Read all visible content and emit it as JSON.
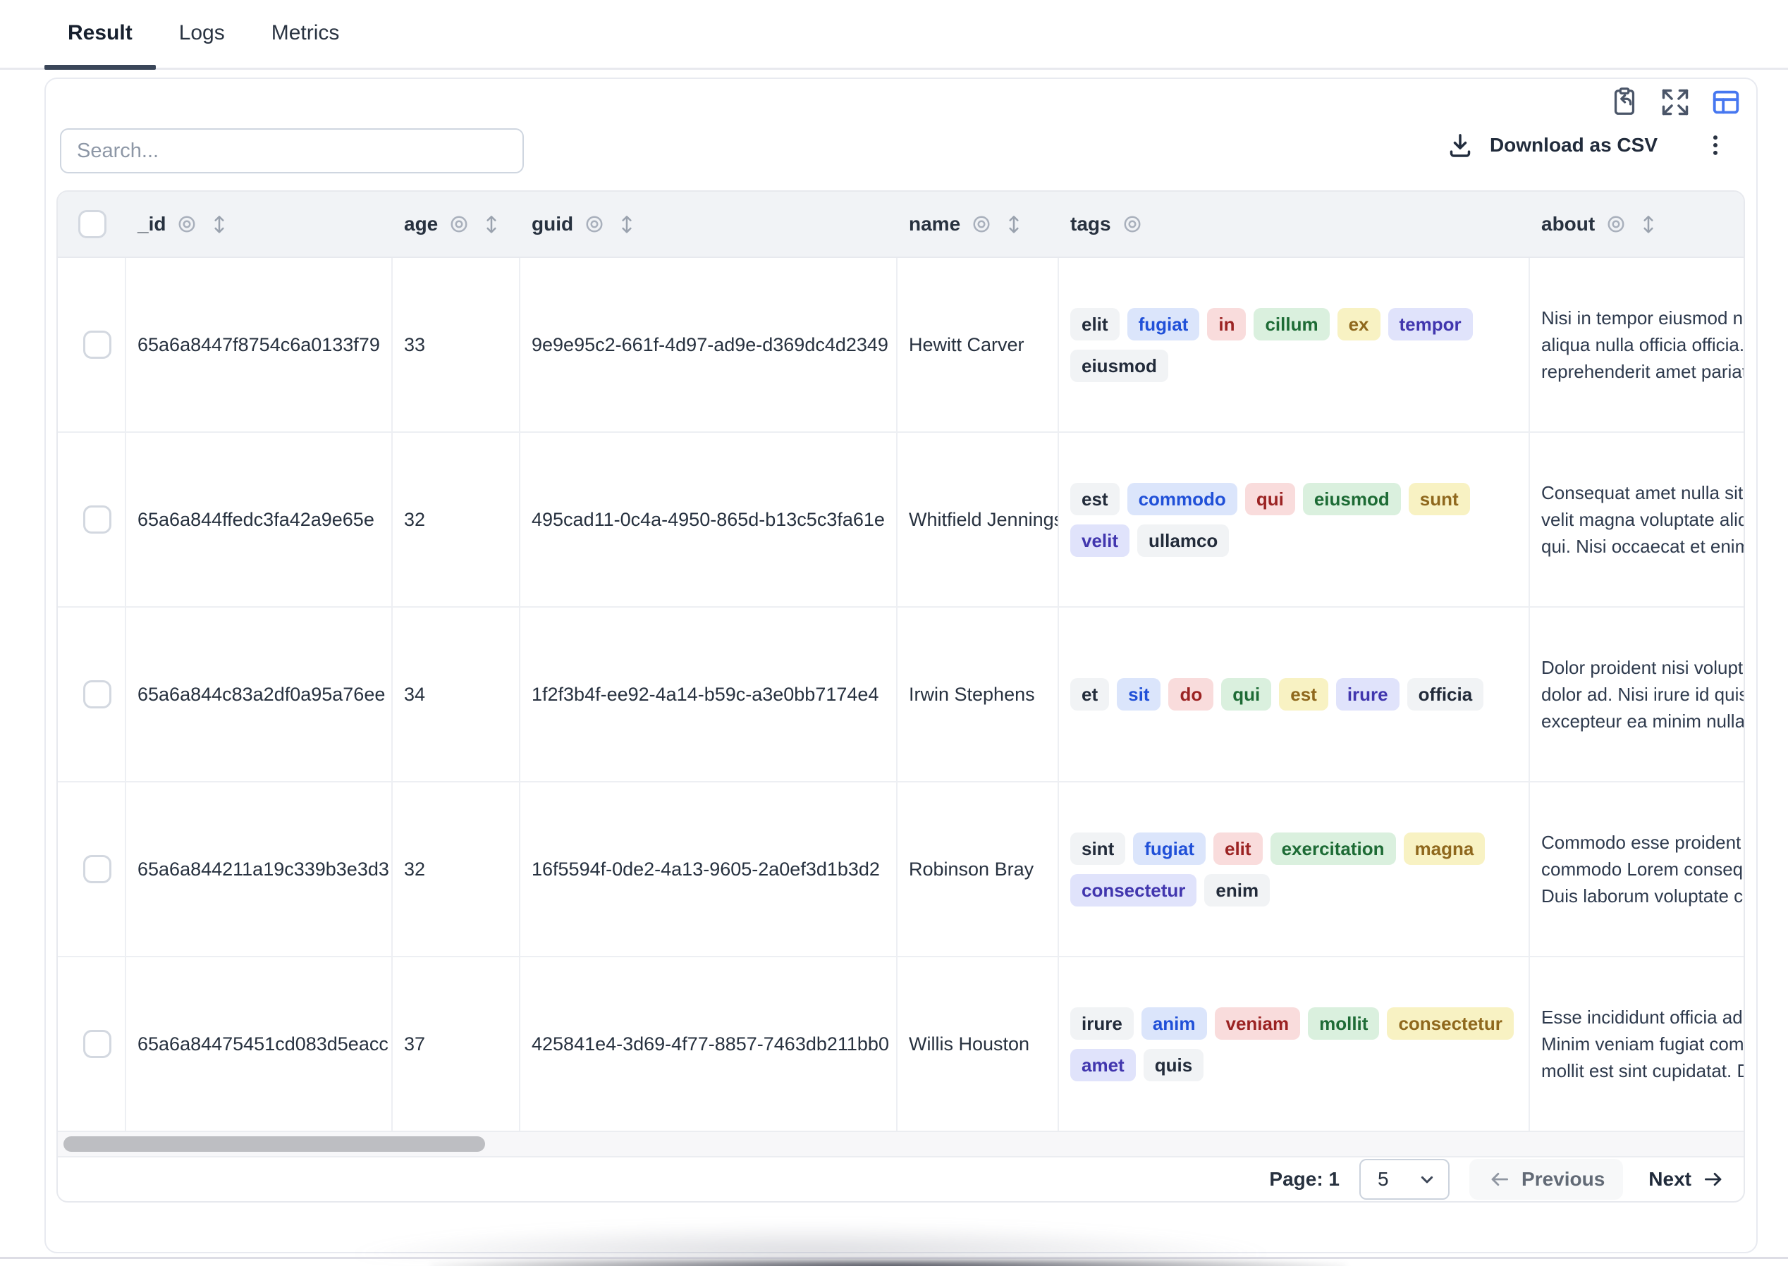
{
  "tabs": [
    {
      "label": "Result",
      "active": true
    },
    {
      "label": "Logs",
      "active": false
    },
    {
      "label": "Metrics",
      "active": false
    }
  ],
  "toolbar": {
    "download_label": "Download as CSV",
    "icons": [
      "clipboard-import-icon",
      "expand-icon",
      "table-view-icon",
      "download-icon",
      "kebab-menu-icon"
    ],
    "accent_color": "#4677f0"
  },
  "search": {
    "placeholder": "Search..."
  },
  "table": {
    "columns": [
      {
        "label": "_id",
        "eye": true,
        "sort": true
      },
      {
        "label": "age",
        "eye": true,
        "sort": true
      },
      {
        "label": "guid",
        "eye": true,
        "sort": true
      },
      {
        "label": "name",
        "eye": true,
        "sort": true
      },
      {
        "label": "tags",
        "eye": true,
        "sort": false
      },
      {
        "label": "about",
        "eye": true,
        "sort": true
      }
    ],
    "rows": [
      {
        "_id": "65a6a8447f8754c6a0133f79",
        "age": "33",
        "guid": "9e9e95c2-661f-4d97-ad9e-d369dc4d2349",
        "name": "Hewitt Carver",
        "tags": [
          [
            {
              "t": "elit",
              "c": "gray"
            },
            {
              "t": "fugiat",
              "c": "blue"
            },
            {
              "t": "in",
              "c": "red"
            },
            {
              "t": "cillum",
              "c": "green"
            },
            {
              "t": "ex",
              "c": "yellow"
            },
            {
              "t": "tempor",
              "c": "indigo"
            }
          ],
          [
            {
              "t": "eiusmod",
              "c": "gray"
            }
          ]
        ],
        "about": [
          "Nisi in tempor eiusmod nulla",
          "aliqua nulla officia officia. Ad",
          "reprehenderit amet pariatur"
        ]
      },
      {
        "_id": "65a6a844ffedc3fa42a9e65e",
        "age": "32",
        "guid": "495cad11-0c4a-4950-865d-b13c5c3fa61e",
        "name": "Whitfield Jennings",
        "tags": [
          [
            {
              "t": "est",
              "c": "gray"
            },
            {
              "t": "commodo",
              "c": "blue"
            },
            {
              "t": "qui",
              "c": "red"
            },
            {
              "t": "eiusmod",
              "c": "green"
            },
            {
              "t": "sunt",
              "c": "yellow"
            }
          ],
          [
            {
              "t": "velit",
              "c": "indigo"
            },
            {
              "t": "ullamco",
              "c": "gray"
            }
          ]
        ],
        "about": [
          "Consequat amet nulla sit aut",
          "velit magna voluptate aliqua",
          "qui. Nisi occaecat et enim a"
        ]
      },
      {
        "_id": "65a6a844c83a2df0a95a76ee",
        "age": "34",
        "guid": "1f2f3b4f-ee92-4a14-b59c-a3e0bb7174e4",
        "name": "Irwin Stephens",
        "tags": [
          [
            {
              "t": "et",
              "c": "gray"
            },
            {
              "t": "sit",
              "c": "blue"
            },
            {
              "t": "do",
              "c": "red"
            },
            {
              "t": "qui",
              "c": "green"
            },
            {
              "t": "est",
              "c": "yellow"
            },
            {
              "t": "irure",
              "c": "indigo"
            },
            {
              "t": "officia",
              "c": "gray"
            }
          ]
        ],
        "about": [
          "Dolor proident nisi voluptate",
          "dolor ad. Nisi irure id quis ex",
          "excepteur ea minim nulla ut"
        ]
      },
      {
        "_id": "65a6a844211a19c339b3e3d3",
        "age": "32",
        "guid": "16f5594f-0de2-4a13-9605-2a0ef3d1b3d2",
        "name": "Robinson Bray",
        "tags": [
          [
            {
              "t": "sint",
              "c": "gray"
            },
            {
              "t": "fugiat",
              "c": "blue"
            },
            {
              "t": "elit",
              "c": "red"
            },
            {
              "t": "exercitation",
              "c": "green"
            },
            {
              "t": "magna",
              "c": "yellow"
            }
          ],
          [
            {
              "t": "consectetur",
              "c": "indigo"
            },
            {
              "t": "enim",
              "c": "gray"
            }
          ]
        ],
        "about": [
          "Commodo esse proident ex",
          "commodo Lorem consequat",
          "Duis laborum voluptate con"
        ]
      },
      {
        "_id": "65a6a84475451cd083d5eacc",
        "age": "37",
        "guid": "425841e4-3d69-4f77-8857-7463db211bb0",
        "name": "Willis Houston",
        "tags": [
          [
            {
              "t": "irure",
              "c": "gray"
            },
            {
              "t": "anim",
              "c": "blue"
            },
            {
              "t": "veniam",
              "c": "red"
            },
            {
              "t": "mollit",
              "c": "green"
            },
            {
              "t": "consectetur",
              "c": "yellow"
            }
          ],
          [
            {
              "t": "amet",
              "c": "indigo"
            },
            {
              "t": "quis",
              "c": "gray"
            }
          ]
        ],
        "about": [
          "Esse incididunt officia adipi",
          "Minim veniam fugiat commo",
          "mollit est sint cupidatat. Des"
        ]
      }
    ]
  },
  "pagination": {
    "page_label": "Page: 1",
    "page_size": "5",
    "previous_label": "Previous",
    "next_label": "Next"
  },
  "colors": {
    "header_bg": "#f1f3f6",
    "border": "#e7e9ee",
    "accent_blue": "#4677f0",
    "chip_gray_bg": "#f1f3f5",
    "chip_blue_bg": "#dbe5fb",
    "chip_red_bg": "#f9dcdc",
    "chip_green_bg": "#daf0de",
    "chip_yellow_bg": "#f8f2c3",
    "chip_indigo_bg": "#e0e3fb"
  }
}
